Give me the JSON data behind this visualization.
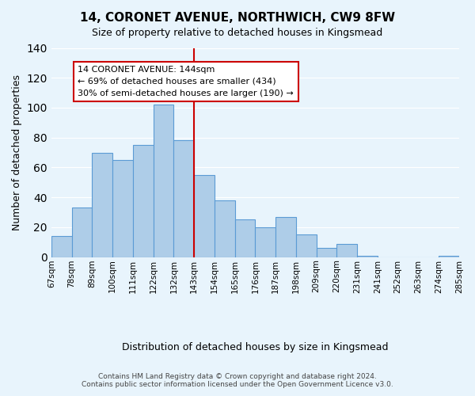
{
  "title": "14, CORONET AVENUE, NORTHWICH, CW9 8FW",
  "subtitle": "Size of property relative to detached houses in Kingsmead",
  "xlabel": "Distribution of detached houses by size in Kingsmead",
  "ylabel": "Number of detached properties",
  "bin_labels": [
    "67sqm",
    "78sqm",
    "89sqm",
    "100sqm",
    "111sqm",
    "122sqm",
    "132sqm",
    "143sqm",
    "154sqm",
    "165sqm",
    "176sqm",
    "187sqm",
    "198sqm",
    "209sqm",
    "220sqm",
    "231sqm",
    "241sqm",
    "252sqm",
    "263sqm",
    "274sqm",
    "285sqm"
  ],
  "bar_heights": [
    14,
    33,
    70,
    65,
    75,
    102,
    78,
    55,
    38,
    25,
    20,
    27,
    15,
    6,
    9,
    1,
    0,
    0,
    0,
    1
  ],
  "bar_color": "#aecde8",
  "bar_edge_color": "#5b9bd5",
  "vline_x_index": 7,
  "vline_color": "#cc0000",
  "annotation_title": "14 CORONET AVENUE: 144sqm",
  "annotation_line1": "← 69% of detached houses are smaller (434)",
  "annotation_line2": "30% of semi-detached houses are larger (190) →",
  "annotation_box_color": "#ffffff",
  "annotation_box_edge_color": "#cc0000",
  "ylim": [
    0,
    140
  ],
  "yticks": [
    0,
    20,
    40,
    60,
    80,
    100,
    120,
    140
  ],
  "footer_line1": "Contains HM Land Registry data © Crown copyright and database right 2024.",
  "footer_line2": "Contains public sector information licensed under the Open Government Licence v3.0.",
  "background_color": "#e8f4fc"
}
